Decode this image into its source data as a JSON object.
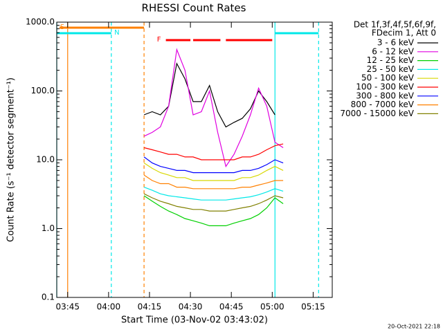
{
  "chart_data": {
    "type": "line",
    "title": "RHESSI Count Rates",
    "x_label": "Start Time (03-Nov-02 03:43:02)",
    "y_label": "Count Rate (s⁻¹ detector segment⁻¹)",
    "footer": "20-Oct-2021 22:18",
    "legend_title": [
      "Det 1f,3f,4f,5f,6f,9f,",
      "FDecim 1, Att 0"
    ],
    "log_y": true,
    "xlim": [
      "03:41",
      "05:22"
    ],
    "xticks": [
      "03:45",
      "04:00",
      "04:15",
      "04:30",
      "04:45",
      "05:00",
      "05:15"
    ],
    "ylim": [
      0.1,
      1000
    ],
    "yticks": [
      0.1,
      {
        "value": 1,
        "label": "1.0"
      },
      {
        "value": 10,
        "label": "10.0"
      },
      {
        "value": 100,
        "label": "100.0"
      },
      {
        "value": 1000,
        "label": "1000.0"
      }
    ],
    "x": [
      "04:13",
      "04:16",
      "04:19",
      "04:22",
      "04:25",
      "04:28",
      "04:31",
      "04:34",
      "04:37",
      "04:40",
      "04:43",
      "04:46",
      "04:49",
      "04:52",
      "04:55",
      "04:58",
      "05:01",
      "05:04"
    ],
    "series": [
      {
        "name": "3 - 6 keV",
        "color": "#000000",
        "values": [
          45,
          50,
          45,
          60,
          250,
          150,
          70,
          70,
          120,
          50,
          30,
          35,
          40,
          55,
          100,
          70,
          45,
          null
        ]
      },
      {
        "name": "6 - 12 keV",
        "color": "#e000e0",
        "values": [
          22,
          25,
          30,
          60,
          400,
          200,
          45,
          50,
          100,
          25,
          8,
          12,
          22,
          45,
          110,
          60,
          18,
          15
        ]
      },
      {
        "name": "12 - 25 keV",
        "color": "#00d000",
        "values": [
          3,
          2.5,
          2.1,
          1.8,
          1.6,
          1.4,
          1.3,
          1.2,
          1.1,
          1.1,
          1.1,
          1.2,
          1.3,
          1.4,
          1.6,
          2,
          2.8,
          2.3
        ]
      },
      {
        "name": "25 - 50 keV",
        "color": "#00e8e8",
        "values": [
          4,
          3.6,
          3.2,
          3,
          2.9,
          2.8,
          2.7,
          2.6,
          2.6,
          2.6,
          2.6,
          2.7,
          2.8,
          2.9,
          3.1,
          3.4,
          3.8,
          3.5
        ]
      },
      {
        "name": "50 - 100 keV",
        "color": "#d8d800",
        "values": [
          9,
          7.5,
          6.5,
          6,
          5.5,
          5.5,
          5,
          5,
          5,
          5,
          5,
          5,
          5.5,
          5.5,
          6,
          7,
          8,
          7
        ]
      },
      {
        "name": "100 - 300 keV",
        "color": "#ff0000",
        "values": [
          15,
          14,
          13,
          12,
          12,
          11,
          11,
          10,
          10,
          10,
          10,
          10,
          11,
          11,
          12,
          14,
          16,
          17
        ]
      },
      {
        "name": "300 - 800 keV",
        "color": "#0000ff",
        "values": [
          11,
          9,
          8,
          7.5,
          7,
          7,
          6.5,
          6.5,
          6.5,
          6.5,
          6.5,
          6.5,
          7,
          7,
          7.5,
          8.5,
          10,
          9
        ]
      },
      {
        "name": "800 - 7000 keV",
        "color": "#ff8000",
        "values": [
          6,
          5,
          4.5,
          4.5,
          4,
          4,
          3.8,
          3.8,
          3.8,
          3.8,
          3.8,
          3.8,
          4,
          4,
          4.3,
          4.6,
          5,
          5
        ]
      },
      {
        "name": "7000 - 15000 keV",
        "color": "#808000",
        "values": [
          3.2,
          2.8,
          2.5,
          2.3,
          2.1,
          2,
          1.9,
          1.9,
          1.8,
          1.8,
          1.8,
          1.9,
          2,
          2.1,
          2.3,
          2.6,
          3,
          2.8
        ]
      }
    ],
    "vlines": [
      {
        "x": "03:41",
        "color": "#00e8e8",
        "dashed": false
      },
      {
        "x": "03:45",
        "color": "#ff8000",
        "dashed": false
      },
      {
        "x": "04:01",
        "color": "#00e8e8",
        "dashed": true
      },
      {
        "x": "04:13",
        "color": "#ff8000",
        "dashed": true
      },
      {
        "x": "05:01",
        "color": "#00e8e8",
        "dashed": false
      },
      {
        "x": "05:17",
        "color": "#00e8e8",
        "dashed": true
      }
    ],
    "intervals": [
      {
        "label": "S",
        "color": "#ff8000",
        "segments": [
          [
            "03:42",
            "04:13"
          ]
        ]
      },
      {
        "label": "N",
        "color": "#00e8e8",
        "segments": [
          [
            "03:41",
            "04:01"
          ],
          [
            "05:01",
            "05:17"
          ]
        ]
      },
      {
        "label": "F",
        "color": "#ff0000",
        "segments": [
          [
            "04:21",
            "04:30"
          ],
          [
            "04:31",
            "04:41"
          ],
          [
            "04:43",
            "05:00"
          ]
        ]
      }
    ]
  }
}
